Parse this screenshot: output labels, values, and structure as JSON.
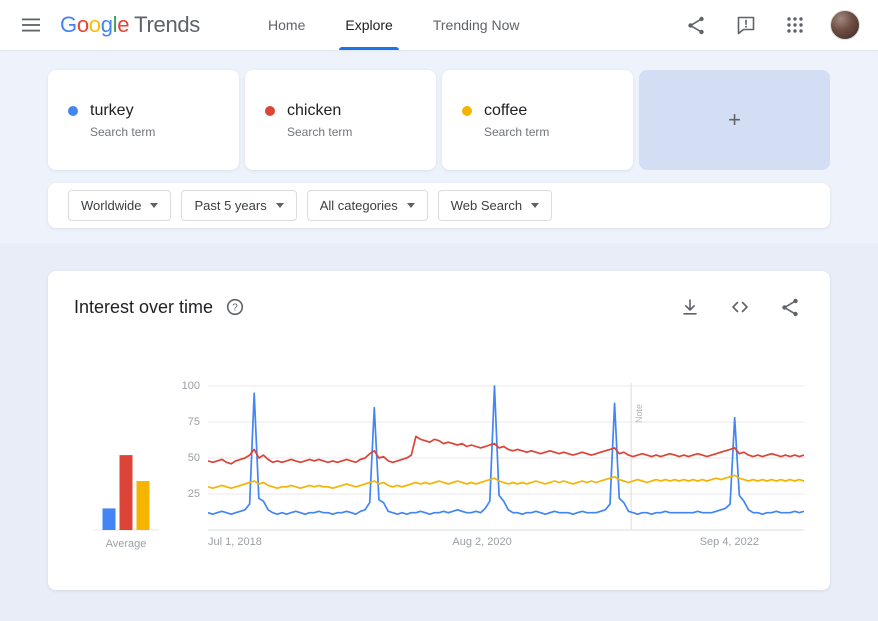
{
  "topbar": {
    "logo": {
      "brand": "Google",
      "product": "Trends",
      "letter_colors": [
        "#4285F4",
        "#EA4335",
        "#FBBC05",
        "#4285F4",
        "#34A853",
        "#EA4335"
      ]
    },
    "nav": [
      {
        "label": "Home",
        "active": false
      },
      {
        "label": "Explore",
        "active": true
      },
      {
        "label": "Trending Now",
        "active": false
      }
    ],
    "icons": [
      "share-icon",
      "feedback-icon",
      "apps-grid-icon",
      "avatar"
    ]
  },
  "compare": {
    "terms": [
      {
        "label": "turkey",
        "sublabel": "Search term",
        "color": "#4285f4"
      },
      {
        "label": "chicken",
        "sublabel": "Search term",
        "color": "#db4437"
      },
      {
        "label": "coffee",
        "sublabel": "Search term",
        "color": "#f4b400"
      }
    ],
    "add_label": "+"
  },
  "filters": {
    "items": [
      {
        "label": "Worldwide"
      },
      {
        "label": "Past 5 years"
      },
      {
        "label": "All categories"
      },
      {
        "label": "Web Search"
      }
    ]
  },
  "panel": {
    "title": "Interest over time",
    "help_icon": "help-icon",
    "actions": [
      "download-icon",
      "embed-icon",
      "share-icon"
    ]
  },
  "chart_data": [
    {
      "type": "bar",
      "title": "Average",
      "categories": [
        "turkey",
        "chicken",
        "coffee"
      ],
      "values": [
        15,
        52,
        34
      ],
      "colors": [
        "#4285f4",
        "#db4437",
        "#f4b400"
      ],
      "ylim": [
        0,
        100
      ]
    },
    {
      "type": "line",
      "title": "Interest over time",
      "x_tick_labels": [
        "Jul 1, 2018",
        "Aug 2, 2020",
        "Sep 4, 2022"
      ],
      "x_tick_positions": [
        0,
        0.41,
        0.825
      ],
      "y_ticks": [
        25,
        50,
        75,
        100
      ],
      "ylim": [
        0,
        100
      ],
      "grid": true,
      "note_position": 0.71,
      "note_label": "Note",
      "series": [
        {
          "name": "turkey",
          "color": "#4285f4",
          "values": [
            12,
            11,
            12,
            13,
            12,
            11,
            12,
            13,
            14,
            18,
            95,
            22,
            20,
            14,
            12,
            11,
            12,
            11,
            12,
            13,
            12,
            11,
            12,
            12,
            13,
            12,
            12,
            11,
            12,
            12,
            13,
            12,
            11,
            13,
            14,
            19,
            85,
            21,
            19,
            13,
            12,
            11,
            12,
            11,
            12,
            12,
            13,
            12,
            11,
            12,
            12,
            13,
            12,
            13,
            14,
            13,
            12,
            12,
            13,
            12,
            15,
            20,
            100,
            24,
            20,
            14,
            12,
            12,
            11,
            12,
            12,
            13,
            12,
            11,
            12,
            13,
            12,
            12,
            12,
            11,
            12,
            13,
            12,
            12,
            12,
            13,
            14,
            18,
            88,
            22,
            19,
            13,
            12,
            11,
            12,
            12,
            11,
            12,
            12,
            13,
            12,
            12,
            12,
            12,
            12,
            12,
            13,
            12,
            12,
            12,
            13,
            14,
            15,
            18,
            78,
            24,
            20,
            14,
            12,
            12,
            11,
            12,
            12,
            13,
            12,
            12,
            12,
            13,
            12,
            13
          ]
        },
        {
          "name": "chicken",
          "color": "#db4437",
          "values": [
            48,
            47,
            48,
            49,
            47,
            46,
            48,
            49,
            50,
            52,
            56,
            50,
            52,
            49,
            47,
            48,
            47,
            48,
            49,
            48,
            47,
            48,
            49,
            48,
            49,
            48,
            47,
            48,
            47,
            48,
            49,
            48,
            47,
            49,
            50,
            53,
            55,
            50,
            51,
            48,
            47,
            48,
            49,
            50,
            52,
            65,
            63,
            62,
            61,
            63,
            62,
            60,
            61,
            60,
            59,
            60,
            58,
            59,
            58,
            57,
            58,
            59,
            60,
            57,
            58,
            56,
            55,
            56,
            55,
            54,
            55,
            54,
            53,
            54,
            55,
            54,
            53,
            54,
            53,
            52,
            53,
            54,
            53,
            52,
            53,
            54,
            55,
            56,
            57,
            53,
            54,
            52,
            51,
            52,
            53,
            52,
            51,
            52,
            51,
            52,
            53,
            52,
            51,
            52,
            51,
            52,
            53,
            52,
            51,
            52,
            53,
            54,
            55,
            56,
            57,
            53,
            54,
            52,
            51,
            52,
            51,
            52,
            53,
            52,
            51,
            52,
            51,
            52,
            51,
            52
          ]
        },
        {
          "name": "coffee",
          "color": "#f4b400",
          "values": [
            30,
            29,
            30,
            31,
            30,
            29,
            30,
            31,
            32,
            33,
            34,
            32,
            33,
            31,
            30,
            29,
            30,
            30,
            31,
            30,
            29,
            30,
            31,
            30,
            31,
            30,
            30,
            29,
            30,
            31,
            32,
            31,
            30,
            31,
            32,
            33,
            34,
            32,
            33,
            31,
            30,
            31,
            30,
            31,
            32,
            33,
            32,
            33,
            32,
            33,
            34,
            33,
            32,
            33,
            34,
            33,
            32,
            33,
            32,
            33,
            34,
            35,
            36,
            34,
            33,
            32,
            33,
            32,
            33,
            32,
            33,
            34,
            33,
            32,
            33,
            34,
            33,
            34,
            33,
            32,
            33,
            34,
            33,
            34,
            33,
            34,
            35,
            36,
            37,
            35,
            34,
            33,
            34,
            35,
            34,
            33,
            34,
            35,
            34,
            35,
            34,
            35,
            34,
            35,
            34,
            35,
            34,
            35,
            34,
            35,
            36,
            35,
            36,
            37,
            38,
            36,
            35,
            34,
            35,
            34,
            35,
            34,
            35,
            34,
            35,
            34,
            35,
            34,
            35,
            34
          ]
        }
      ]
    }
  ]
}
